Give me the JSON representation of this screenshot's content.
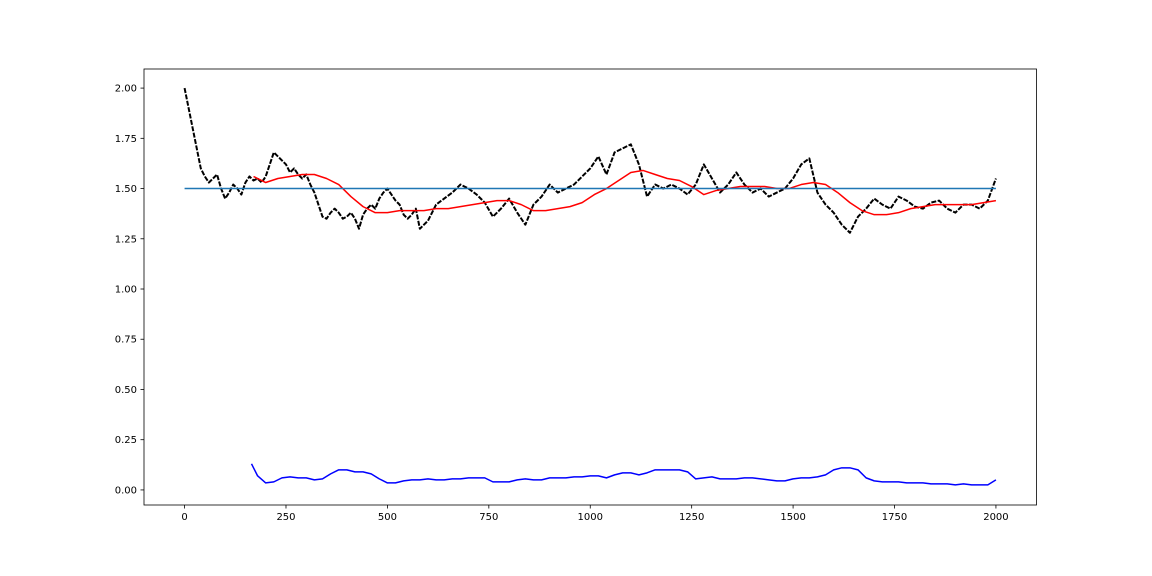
{
  "chart_data": {
    "type": "line",
    "title": "",
    "xlabel": "",
    "ylabel": "",
    "xlim": [
      -100,
      2100
    ],
    "ylim": [
      -0.075,
      2.095
    ],
    "x_ticks": [
      0,
      250,
      500,
      750,
      1000,
      1250,
      1500,
      1750,
      2000
    ],
    "x_tick_labels": [
      "0",
      "250",
      "500",
      "750",
      "1000",
      "1250",
      "1500",
      "1750",
      "2000"
    ],
    "y_ticks": [
      0.0,
      0.25,
      0.5,
      0.75,
      1.0,
      1.25,
      1.5,
      1.75,
      2.0
    ],
    "y_tick_labels": [
      "0.00",
      "0.25",
      "0.50",
      "0.75",
      "1.00",
      "1.25",
      "1.50",
      "1.75",
      "2.00"
    ],
    "grid": false,
    "legend": "none",
    "series": [
      {
        "color": "#000000",
        "style": "dashed",
        "x": [
          0,
          10,
          20,
          30,
          40,
          50,
          60,
          70,
          80,
          90,
          100,
          110,
          120,
          130,
          140,
          150,
          160,
          170,
          180,
          190,
          200,
          210,
          220,
          230,
          240,
          250,
          260,
          270,
          280,
          290,
          300,
          310,
          320,
          330,
          340,
          350,
          360,
          370,
          380,
          390,
          400,
          410,
          420,
          430,
          440,
          450,
          460,
          470,
          480,
          490,
          500,
          510,
          520,
          530,
          540,
          550,
          560,
          570,
          580,
          590,
          600,
          620,
          640,
          660,
          680,
          700,
          720,
          740,
          760,
          780,
          800,
          820,
          840,
          860,
          880,
          900,
          920,
          940,
          960,
          980,
          1000,
          1020,
          1040,
          1060,
          1080,
          1100,
          1120,
          1140,
          1160,
          1180,
          1200,
          1220,
          1240,
          1260,
          1280,
          1300,
          1320,
          1340,
          1360,
          1380,
          1400,
          1420,
          1440,
          1460,
          1480,
          1500,
          1520,
          1540,
          1560,
          1580,
          1600,
          1620,
          1640,
          1660,
          1680,
          1700,
          1720,
          1740,
          1760,
          1780,
          1800,
          1820,
          1840,
          1860,
          1880,
          1900,
          1920,
          1940,
          1960,
          1980,
          2000
        ],
        "y": [
          2.0,
          1.9,
          1.8,
          1.7,
          1.6,
          1.56,
          1.53,
          1.55,
          1.57,
          1.5,
          1.45,
          1.48,
          1.52,
          1.5,
          1.47,
          1.53,
          1.56,
          1.54,
          1.55,
          1.53,
          1.56,
          1.62,
          1.68,
          1.66,
          1.64,
          1.62,
          1.58,
          1.6,
          1.57,
          1.55,
          1.57,
          1.52,
          1.48,
          1.42,
          1.36,
          1.35,
          1.38,
          1.4,
          1.38,
          1.35,
          1.36,
          1.38,
          1.35,
          1.3,
          1.37,
          1.4,
          1.42,
          1.4,
          1.45,
          1.48,
          1.5,
          1.47,
          1.44,
          1.42,
          1.37,
          1.35,
          1.37,
          1.4,
          1.3,
          1.32,
          1.34,
          1.42,
          1.45,
          1.48,
          1.52,
          1.5,
          1.47,
          1.43,
          1.36,
          1.4,
          1.45,
          1.38,
          1.32,
          1.42,
          1.46,
          1.52,
          1.48,
          1.5,
          1.52,
          1.56,
          1.6,
          1.66,
          1.57,
          1.68,
          1.7,
          1.72,
          1.62,
          1.46,
          1.52,
          1.5,
          1.52,
          1.5,
          1.47,
          1.52,
          1.62,
          1.55,
          1.48,
          1.52,
          1.58,
          1.52,
          1.48,
          1.5,
          1.46,
          1.48,
          1.5,
          1.55,
          1.62,
          1.65,
          1.48,
          1.42,
          1.38,
          1.32,
          1.28,
          1.36,
          1.4,
          1.45,
          1.42,
          1.4,
          1.46,
          1.44,
          1.41,
          1.4,
          1.43,
          1.44,
          1.4,
          1.38,
          1.42,
          1.42,
          1.4,
          1.44,
          1.55
        ]
      },
      {
        "color": "#ff0000",
        "style": "solid",
        "x": [
          170,
          200,
          230,
          260,
          290,
          320,
          350,
          380,
          410,
          440,
          470,
          500,
          530,
          560,
          590,
          620,
          650,
          680,
          710,
          740,
          770,
          800,
          830,
          860,
          890,
          920,
          950,
          980,
          1010,
          1040,
          1070,
          1100,
          1130,
          1160,
          1190,
          1220,
          1250,
          1280,
          1310,
          1340,
          1370,
          1400,
          1430,
          1460,
          1490,
          1520,
          1550,
          1580,
          1610,
          1640,
          1670,
          1700,
          1730,
          1760,
          1790,
          1820,
          1850,
          1880,
          1910,
          1940,
          1970,
          2000
        ],
        "y": [
          1.56,
          1.53,
          1.55,
          1.56,
          1.57,
          1.57,
          1.55,
          1.52,
          1.46,
          1.41,
          1.38,
          1.38,
          1.39,
          1.39,
          1.39,
          1.4,
          1.4,
          1.41,
          1.42,
          1.43,
          1.44,
          1.44,
          1.42,
          1.39,
          1.39,
          1.4,
          1.41,
          1.43,
          1.47,
          1.5,
          1.54,
          1.58,
          1.59,
          1.57,
          1.55,
          1.54,
          1.51,
          1.47,
          1.49,
          1.5,
          1.51,
          1.51,
          1.51,
          1.5,
          1.5,
          1.52,
          1.53,
          1.52,
          1.48,
          1.43,
          1.39,
          1.37,
          1.37,
          1.38,
          1.4,
          1.41,
          1.42,
          1.42,
          1.42,
          1.42,
          1.43,
          1.44
        ]
      },
      {
        "color": "#1f77b4",
        "style": "solid",
        "x": [
          0,
          2000
        ],
        "y": [
          1.5,
          1.5
        ]
      },
      {
        "color": "#0000ff",
        "style": "solid",
        "x": [
          165,
          180,
          200,
          220,
          240,
          260,
          280,
          300,
          320,
          340,
          360,
          380,
          400,
          420,
          440,
          460,
          480,
          500,
          520,
          540,
          560,
          580,
          600,
          620,
          640,
          660,
          680,
          700,
          720,
          740,
          760,
          780,
          800,
          820,
          840,
          860,
          880,
          900,
          920,
          940,
          960,
          980,
          1000,
          1020,
          1040,
          1060,
          1080,
          1100,
          1120,
          1140,
          1160,
          1180,
          1200,
          1220,
          1240,
          1260,
          1280,
          1300,
          1320,
          1340,
          1360,
          1380,
          1400,
          1420,
          1440,
          1460,
          1480,
          1500,
          1520,
          1540,
          1560,
          1580,
          1600,
          1620,
          1640,
          1660,
          1680,
          1700,
          1720,
          1740,
          1760,
          1780,
          1800,
          1820,
          1840,
          1860,
          1880,
          1900,
          1920,
          1940,
          1960,
          1980,
          2000
        ],
        "y": [
          0.13,
          0.07,
          0.035,
          0.04,
          0.06,
          0.065,
          0.06,
          0.06,
          0.05,
          0.055,
          0.08,
          0.1,
          0.1,
          0.09,
          0.09,
          0.08,
          0.055,
          0.035,
          0.035,
          0.045,
          0.05,
          0.05,
          0.055,
          0.05,
          0.05,
          0.055,
          0.055,
          0.06,
          0.06,
          0.06,
          0.04,
          0.04,
          0.04,
          0.05,
          0.055,
          0.05,
          0.05,
          0.06,
          0.06,
          0.06,
          0.065,
          0.065,
          0.07,
          0.07,
          0.06,
          0.075,
          0.085,
          0.085,
          0.075,
          0.085,
          0.1,
          0.1,
          0.1,
          0.1,
          0.09,
          0.055,
          0.06,
          0.065,
          0.055,
          0.055,
          0.055,
          0.06,
          0.06,
          0.055,
          0.05,
          0.045,
          0.045,
          0.055,
          0.06,
          0.06,
          0.065,
          0.075,
          0.1,
          0.11,
          0.11,
          0.1,
          0.06,
          0.045,
          0.04,
          0.04,
          0.04,
          0.035,
          0.035,
          0.035,
          0.03,
          0.03,
          0.03,
          0.025,
          0.03,
          0.025,
          0.025,
          0.025,
          0.05
        ]
      }
    ]
  }
}
